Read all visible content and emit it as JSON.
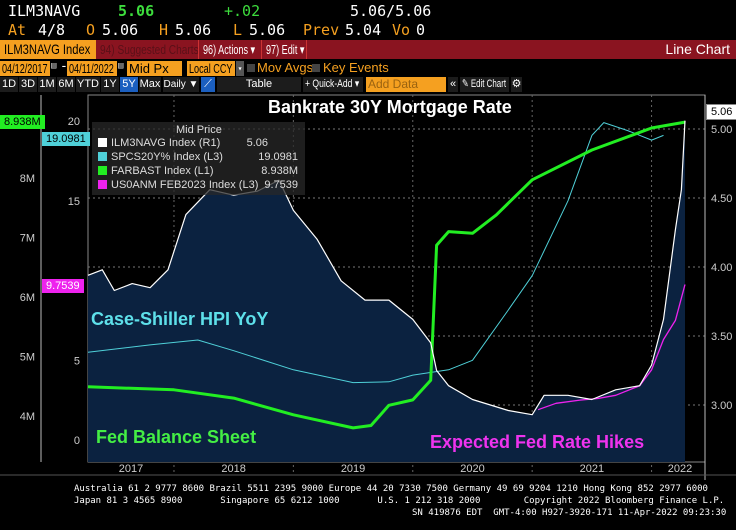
{
  "quote": {
    "ticker": "ILM3NAVG",
    "last": "5.06",
    "change": "+.02",
    "bidask": "5.06/5.06",
    "at_label": "At",
    "at": "4/8",
    "o_label": "O",
    "open": "5.06",
    "h_label": "H",
    "high": "5.06",
    "l_label": "L",
    "low": "5.06",
    "prev_label": "Prev",
    "prev": "5.04",
    "vo_label": "Vo",
    "volume": "0"
  },
  "bar": {
    "security": "ILM3NAVG Index",
    "suggested": "94) Suggested Charts",
    "actions": "96) Actions ▾",
    "edit": "97) Edit ▾",
    "chart_type": "Line Chart"
  },
  "controls": {
    "start": "04/12/2017",
    "dash": "-",
    "end": "04/11/2022",
    "field": "Mid Px",
    "currency": "Local CCY",
    "mov_avgs": "Mov Avgs",
    "key_events": "Key Events"
  },
  "toolbar": {
    "periods": [
      "1D",
      "3D",
      "1M",
      "6M",
      "YTD",
      "1Y",
      "5Y",
      "Max"
    ],
    "active": "5Y",
    "freq": "Daily ▼",
    "table": "Table",
    "quick_add": "+ Quick-Add ▾",
    "add_data_placeholder": "Add Data",
    "collapse": "«",
    "edit_chart": "✎ Edit Chart",
    "settings": "⚙"
  },
  "colors": {
    "mortgage": "#ffffff",
    "caseshiller": "#4fd0d8",
    "fed": "#22ee22",
    "hikes": "#ee22ee",
    "fill": "#0b2240",
    "orange": "#f5a020",
    "barred": "#8a1420"
  },
  "footer": {
    "line1": "Australia 61 2 9777 8600 Brazil 5511 2395 9000 Europe 44 20 7330 7500 Germany 49 69 9204 1210 Hong Kong 852 2977 6000",
    "line2": "Japan 81 3 4565 8900       Singapore 65 6212 1000       U.S. 1 212 318 2000        Copyright 2022 Bloomberg Finance L.P.",
    "line3": "SN 419876 EDT  GMT-4:00 H927-3920-171 11-Apr-2022 09:23:30"
  },
  "chart_data": {
    "type": "line",
    "title": "Bankrate 30Y Mortgage Rate",
    "annotations": [
      "Case-Shiller HPI YoY",
      "Fed Balance Sheet",
      "Expected Fed Rate Hikes"
    ],
    "legend": {
      "header": "Mid Price",
      "position": "top-left",
      "entries": [
        {
          "name": "ILM3NAVG Index",
          "axis": "(R1)",
          "value": "5.06"
        },
        {
          "name": "SPCS20Y% Index",
          "axis": "(L3)",
          "value": "19.0981"
        },
        {
          "name": "FARBAST Index",
          "axis": "(L1)",
          "value": "8.938M"
        },
        {
          "name": "US0ANM FEB2023 Index",
          "axis": "(L3)",
          "value": "9.7539"
        }
      ]
    },
    "last_tags": {
      "R1": "5.06",
      "L1": "8.938M",
      "L3a": "19.0981",
      "L3b": "9.7539"
    },
    "x_ticks": [
      "2017",
      "2018",
      "2019",
      "2020",
      "2021",
      "2022"
    ],
    "xlim": [
      2017.28,
      2022.28
    ],
    "axes": {
      "L1": {
        "ticks": [
          "4M",
          "5M",
          "6M",
          "7M",
          "8M"
        ],
        "values": [
          4,
          5,
          6,
          7,
          8
        ],
        "range": [
          3.6,
          9.8
        ]
      },
      "L3": {
        "ticks": [
          "0",
          "5",
          "15",
          "20"
        ],
        "values": [
          0,
          5,
          15,
          20
        ],
        "range": [
          -1.5,
          22
        ]
      },
      "R1": {
        "ticks": [
          "3.00",
          "3.50",
          "4.00",
          "4.50",
          "5.00"
        ],
        "values": [
          3,
          3.5,
          4,
          4.5,
          5
        ],
        "range": [
          2.75,
          5.2
        ]
      }
    },
    "series": [
      {
        "name": "ILM3NAVG Index",
        "axis": "R1",
        "x": [
          2017.28,
          2017.4,
          2017.5,
          2017.65,
          2017.8,
          2017.95,
          2018.1,
          2018.3,
          2018.5,
          2018.7,
          2018.88,
          2019.0,
          2019.2,
          2019.4,
          2019.6,
          2019.8,
          2020.0,
          2020.15,
          2020.2,
          2020.3,
          2020.5,
          2020.8,
          2021.0,
          2021.1,
          2021.3,
          2021.5,
          2021.7,
          2021.9,
          2022.0,
          2022.1,
          2022.2,
          2022.25,
          2022.28
        ],
        "y": [
          3.94,
          3.98,
          3.83,
          3.88,
          3.85,
          3.98,
          4.38,
          4.56,
          4.52,
          4.55,
          4.63,
          4.41,
          4.2,
          3.9,
          3.76,
          3.76,
          3.62,
          3.45,
          3.25,
          3.14,
          3.04,
          2.96,
          2.93,
          3.07,
          3.07,
          3.04,
          3.11,
          3.14,
          3.29,
          3.62,
          4.27,
          4.56,
          5.06
        ]
      },
      {
        "name": "SPCS20Y% Index",
        "axis": "L3",
        "x": [
          2017.28,
          2017.8,
          2018.2,
          2018.5,
          2019.0,
          2019.5,
          2019.8,
          2020.0,
          2020.3,
          2020.5,
          2020.8,
          2021.0,
          2021.3,
          2021.5,
          2021.6,
          2021.8,
          2022.0,
          2022.1
        ],
        "y": [
          5.5,
          5.96,
          6.27,
          5.6,
          4.4,
          3.6,
          3.65,
          4.07,
          4.4,
          5.0,
          8.15,
          10.3,
          15,
          19.1,
          19.9,
          19.4,
          18.8,
          19.1
        ]
      },
      {
        "name": "FARBAST Index",
        "axis": "L1",
        "x": [
          2017.28,
          2018.0,
          2018.5,
          2019.0,
          2019.5,
          2019.65,
          2019.8,
          2020.0,
          2020.15,
          2020.2,
          2020.3,
          2020.5,
          2020.7,
          2021.0,
          2021.5,
          2022.0,
          2022.28
        ],
        "y": [
          4.49,
          4.44,
          4.3,
          4.02,
          3.8,
          3.84,
          4.18,
          4.27,
          4.6,
          6.87,
          7.1,
          7.07,
          7.38,
          7.97,
          8.47,
          8.84,
          8.94
        ]
      },
      {
        "name": "US0ANM FEB2023 Index",
        "axis": "L3",
        "x": [
          2021.05,
          2021.2,
          2021.4,
          2021.55,
          2021.7,
          2021.9,
          2022.0,
          2022.1,
          2022.2,
          2022.28
        ],
        "y": [
          1.9,
          2.3,
          2.5,
          2.6,
          2.8,
          3.4,
          4.4,
          6.3,
          7.5,
          9.75
        ]
      }
    ]
  }
}
